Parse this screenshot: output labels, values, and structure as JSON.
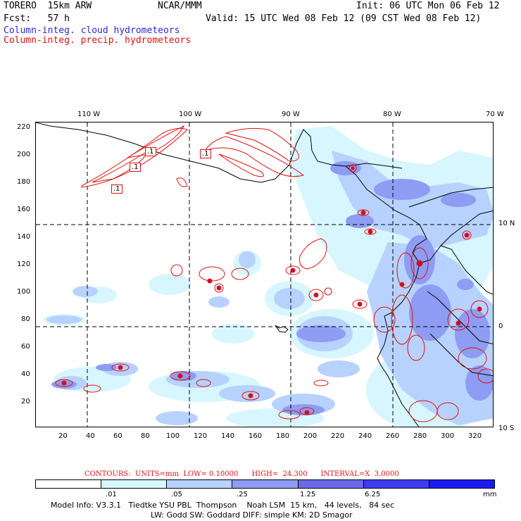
{
  "header": {
    "model": "TORERO  15km ARW",
    "org": "NCAR/MMM",
    "init": "Init: 06 UTC Mon 06 Feb 12",
    "fcst": "Fcst:   57 h",
    "valid": "Valid: 15 UTC Wed 08 Feb 12 (09 CST Wed 08 Feb 12)",
    "field1": "Column-integ. cloud hydrometeors",
    "field2": "Column-integ. precip. hydrometeors"
  },
  "axes": {
    "top_lon": [
      "110 W",
      "100 W",
      "90 W",
      "80 W",
      "70 W"
    ],
    "right_lat": [
      "10 N",
      "0",
      "10 S"
    ],
    "left_y": [
      "220",
      "200",
      "180",
      "160",
      "140",
      "120",
      "100",
      "80",
      "60",
      "40",
      "20"
    ],
    "bottom_x": [
      "20",
      "40",
      "60",
      "80",
      "100",
      "120",
      "140",
      "160",
      "180",
      "200",
      "220",
      "240",
      "260",
      "280",
      "300",
      "320"
    ]
  },
  "contour_labels": [
    ".1",
    ".1",
    ".1",
    ".1"
  ],
  "contours_info": "CONTOURS:  UNITS=mm  LOW= 0.10000      HIGH=  24.300      INTERVAL=X  3.0000",
  "colorbar": {
    "labels": [
      ".01",
      ".05",
      ".25",
      "1.25",
      "6.25",
      "mm"
    ],
    "colors": [
      "#ffffff",
      "#d7f6ff",
      "#b7d2ff",
      "#8e9cf4",
      "#6a6ae8",
      "#3c3cf0",
      "#1c1cf2"
    ]
  },
  "footer": {
    "line1": "Model Info: V3.3.1   Tiedtke YSU PBL  Thompson    Noah LSM  15 km,   44 levels,   84 sec",
    "line2": "LW: Godd SW: Goddard DIFF: simple KM: 2D Smagor"
  },
  "colors": {
    "coast": "#000000",
    "precip": "#e01010",
    "cloud_light": "#d7f6ff",
    "cloud_mid": "#b7d2ff",
    "cloud_dark": "#8e9cf4"
  }
}
